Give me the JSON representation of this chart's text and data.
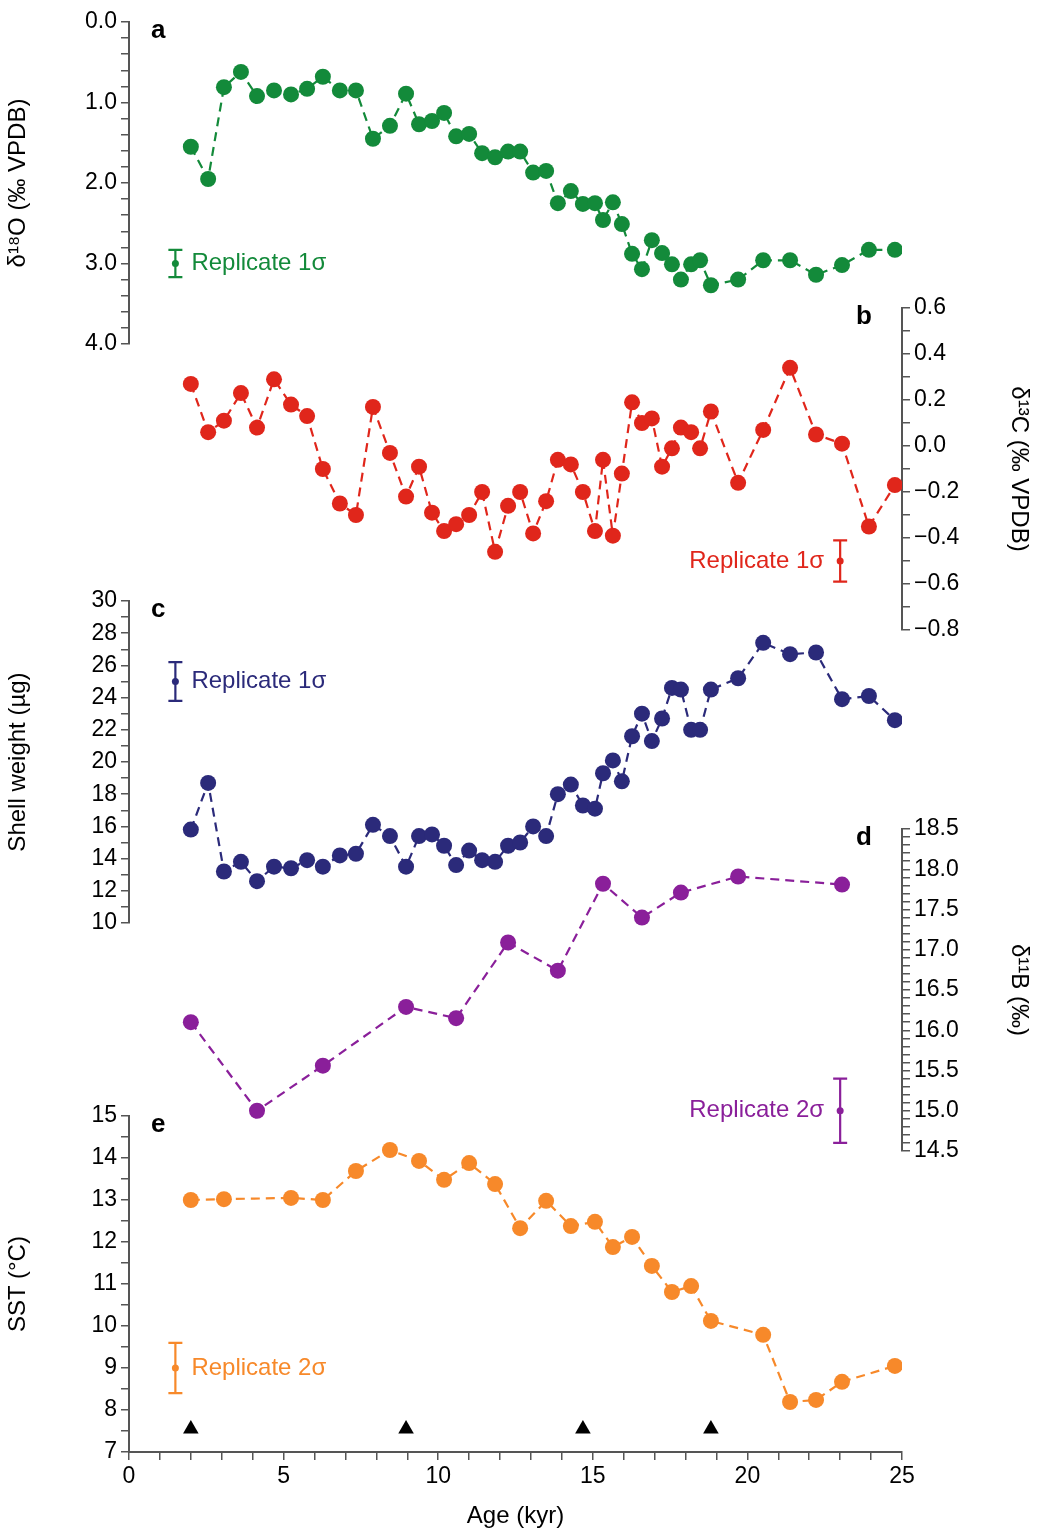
{
  "chart_data": [
    {
      "type": "line",
      "title": "a",
      "ylabel": "δ¹⁸O (‰ VPDB)",
      "xlim": [
        0,
        25
      ],
      "ylim": [
        4.0,
        0.0
      ],
      "yticks": [
        {
          "value": 0,
          "label": "0.0"
        },
        {
          "value": 0.2,
          "label": null
        },
        {
          "value": 0.4,
          "label": null
        },
        {
          "value": 0.6,
          "label": null
        },
        {
          "value": 0.8,
          "label": null
        },
        {
          "value": 1,
          "label": "1.0"
        },
        {
          "value": 1.2,
          "label": null
        },
        {
          "value": 1.4,
          "label": null
        },
        {
          "value": 1.6,
          "label": null
        },
        {
          "value": 1.8,
          "label": null
        },
        {
          "value": 2,
          "label": "2.0"
        },
        {
          "value": 2.2,
          "label": null
        },
        {
          "value": 2.4,
          "label": null
        },
        {
          "value": 2.6,
          "label": null
        },
        {
          "value": 2.8,
          "label": null
        },
        {
          "value": 3,
          "label": "3.0"
        },
        {
          "value": 3.2,
          "label": null
        },
        {
          "value": 3.4,
          "label": null
        },
        {
          "value": 3.6,
          "label": null
        },
        {
          "value": 3.8,
          "label": null
        },
        {
          "value": 4,
          "label": "4.0"
        }
      ],
      "tick_labels": "y",
      "grid": false,
      "legend": false,
      "marker": "circle",
      "line_style": "dashed",
      "series": [
        {
          "color": "#138a3a",
          "x": [
            2.0,
            2.56,
            3.07,
            3.62,
            4.14,
            4.69,
            5.24,
            5.76,
            6.27,
            6.82,
            7.34,
            7.89,
            8.44,
            8.96,
            9.38,
            9.8,
            10.19,
            10.58,
            11.0,
            11.42,
            11.84,
            12.26,
            12.65,
            13.07,
            13.49,
            13.87,
            14.29,
            14.68,
            15.07,
            15.33,
            15.65,
            15.94,
            16.27,
            16.59,
            16.91,
            17.24,
            17.56,
            17.85,
            18.18,
            18.47,
            18.82,
            19.7,
            20.51,
            21.38,
            22.22,
            23.06,
            23.93,
            24.77
          ],
          "values": [
            1.55,
            1.95,
            0.81,
            0.62,
            0.92,
            0.85,
            0.9,
            0.83,
            0.68,
            0.85,
            0.85,
            1.45,
            1.29,
            0.89,
            1.27,
            1.23,
            1.13,
            1.42,
            1.39,
            1.63,
            1.68,
            1.61,
            1.61,
            1.87,
            1.85,
            2.25,
            2.1,
            2.26,
            2.25,
            2.46,
            2.24,
            2.51,
            2.88,
            3.07,
            2.71,
            2.87,
            3.01,
            3.2,
            3.01,
            2.96,
            3.27,
            3.2,
            2.96,
            2.96,
            3.14,
            3.02,
            2.83,
            2.83
          ]
        },
        {
          "name": "Replicate 1σ",
          "type": "scatter",
          "color": "#138a3a",
          "x": [
            1.5
          ],
          "values": [
            3.0
          ],
          "errors": [
            0.17
          ]
        }
      ]
    },
    {
      "type": "line",
      "title": "b",
      "y2label": "δ¹³C (‰ VPDB)",
      "xlim": [
        0,
        25
      ],
      "y2lim": [
        -0.8,
        0.6
      ],
      "y2ticks": [
        {
          "value": -0.8,
          "label": "−0.8"
        },
        {
          "value": -0.7,
          "label": null
        },
        {
          "value": -0.6,
          "label": "−0.6"
        },
        {
          "value": -0.5,
          "label": null
        },
        {
          "value": -0.4,
          "label": "−0.4"
        },
        {
          "value": -0.3,
          "label": null
        },
        {
          "value": -0.2,
          "label": "−0.2"
        },
        {
          "value": -0.1,
          "label": null
        },
        {
          "value": 0,
          "label": "0.0"
        },
        {
          "value": 0.1,
          "label": null
        },
        0.2,
        {
          "value": 0.3,
          "label": null
        },
        0.4,
        {
          "value": 0.5,
          "label": null
        },
        0.6
      ],
      "tick_labels": "y2",
      "grid": false,
      "legend": false,
      "marker": "circle",
      "line_style": "dashed",
      "series": [
        {
          "color": "#e0261b",
          "axis": "y2",
          "x": [
            2.0,
            2.56,
            3.07,
            3.62,
            4.14,
            4.69,
            5.24,
            5.76,
            6.27,
            6.82,
            7.34,
            7.89,
            8.44,
            8.96,
            9.38,
            9.8,
            10.19,
            10.58,
            11.0,
            11.42,
            11.84,
            12.26,
            12.65,
            13.07,
            13.49,
            13.87,
            14.29,
            14.68,
            15.07,
            15.33,
            15.65,
            15.94,
            16.27,
            16.59,
            16.91,
            17.24,
            17.56,
            17.85,
            18.18,
            18.47,
            18.82,
            19.7,
            20.51,
            21.38,
            22.22,
            23.06,
            23.93,
            24.77
          ],
          "values": [
            0.27,
            0.06,
            0.11,
            0.23,
            0.08,
            0.29,
            0.18,
            0.13,
            -0.1,
            -0.25,
            -0.3,
            0.17,
            -0.03,
            -0.22,
            -0.09,
            -0.29,
            -0.37,
            -0.34,
            -0.3,
            -0.2,
            -0.46,
            -0.26,
            -0.2,
            -0.38,
            -0.24,
            -0.06,
            -0.08,
            -0.2,
            -0.37,
            -0.06,
            -0.39,
            -0.12,
            0.19,
            0.1,
            0.12,
            -0.09,
            -0.01,
            0.08,
            0.06,
            -0.01,
            0.15,
            -0.16,
            0.07,
            0.34,
            0.05,
            0.01,
            -0.35,
            -0.17
          ]
        },
        {
          "name": "Replicate 1σ",
          "type": "scatter",
          "color": "#e0261b",
          "axis": "y2",
          "x": [
            23.0
          ],
          "values": [
            -0.5
          ],
          "errors": [
            0.09
          ]
        }
      ]
    },
    {
      "type": "line",
      "title": "c",
      "ylabel": "Shell weight (µg)",
      "xlim": [
        0,
        25
      ],
      "ylim": [
        10,
        30
      ],
      "yticks": [
        10,
        {
          "value": 11,
          "label": null
        },
        12,
        {
          "value": 13,
          "label": null
        },
        14,
        {
          "value": 15,
          "label": null
        },
        16,
        {
          "value": 17,
          "label": null
        },
        18,
        {
          "value": 19,
          "label": null
        },
        20,
        {
          "value": 21,
          "label": null
        },
        22,
        {
          "value": 23,
          "label": null
        },
        24,
        {
          "value": 25,
          "label": null
        },
        26,
        {
          "value": 27,
          "label": null
        },
        28,
        {
          "value": 29,
          "label": null
        },
        30
      ],
      "tick_labels": "y",
      "grid": false,
      "legend": false,
      "marker": "circle",
      "line_style": "dashed",
      "series": [
        {
          "color": "#2b2a7a",
          "x": [
            2.0,
            2.56,
            3.07,
            3.62,
            4.14,
            4.69,
            5.24,
            5.76,
            6.27,
            6.82,
            7.34,
            7.89,
            8.44,
            8.96,
            9.38,
            9.8,
            10.19,
            10.58,
            11.0,
            11.42,
            11.84,
            12.26,
            12.65,
            13.07,
            13.49,
            13.87,
            14.29,
            14.68,
            15.07,
            15.33,
            15.65,
            15.94,
            16.27,
            16.59,
            16.91,
            17.24,
            17.56,
            17.85,
            18.18,
            18.47,
            18.82,
            19.7,
            20.51,
            21.38,
            22.22,
            23.06,
            23.93,
            24.77
          ],
          "values": [
            15.8,
            18.7,
            13.2,
            13.8,
            12.6,
            13.5,
            13.4,
            13.9,
            13.5,
            14.2,
            14.3,
            16.1,
            15.4,
            13.5,
            15.4,
            15.5,
            14.8,
            13.6,
            14.5,
            13.9,
            13.8,
            14.8,
            15.0,
            16.0,
            15.4,
            18.0,
            18.6,
            17.3,
            17.1,
            19.3,
            20.1,
            18.8,
            21.6,
            23.0,
            21.3,
            22.7,
            24.6,
            24.5,
            22.0,
            22.0,
            24.5,
            25.2,
            27.4,
            26.7,
            26.8,
            23.9,
            24.1,
            22.6
          ]
        },
        {
          "name": "Replicate 1σ",
          "type": "scatter",
          "color": "#2b2a7a",
          "x": [
            1.5
          ],
          "values": [
            25.0
          ],
          "errors": [
            1.2
          ]
        }
      ]
    },
    {
      "type": "line",
      "title": "d",
      "y2label": "δ¹¹B (‰)",
      "xlim": [
        0,
        25
      ],
      "y2lim": [
        14.5,
        18.5
      ],
      "y2ticks": [
        14.5,
        {
          "value": 14.6,
          "label": null
        },
        {
          "value": 14.7,
          "label": null
        },
        {
          "value": 14.8,
          "label": null
        },
        {
          "value": 14.9,
          "label": null
        },
        {
          "value": 15,
          "label": "15.0"
        },
        {
          "value": 15.1,
          "label": null
        },
        {
          "value": 15.2,
          "label": null
        },
        {
          "value": 15.3,
          "label": null
        },
        {
          "value": 15.4,
          "label": null
        },
        15.5,
        {
          "value": 15.6,
          "label": null
        },
        {
          "value": 15.7,
          "label": null
        },
        {
          "value": 15.8,
          "label": null
        },
        {
          "value": 15.9,
          "label": null
        },
        {
          "value": 16,
          "label": "16.0"
        },
        {
          "value": 16.1,
          "label": null
        },
        {
          "value": 16.2,
          "label": null
        },
        {
          "value": 16.3,
          "label": null
        },
        {
          "value": 16.4,
          "label": null
        },
        16.5,
        {
          "value": 16.6,
          "label": null
        },
        {
          "value": 16.7,
          "label": null
        },
        {
          "value": 16.8,
          "label": null
        },
        {
          "value": 16.9,
          "label": null
        },
        {
          "value": 17,
          "label": "17.0"
        },
        {
          "value": 17.1,
          "label": null
        },
        {
          "value": 17.2,
          "label": null
        },
        {
          "value": 17.3,
          "label": null
        },
        {
          "value": 17.4,
          "label": null
        },
        17.5,
        {
          "value": 17.6,
          "label": null
        },
        {
          "value": 17.7,
          "label": null
        },
        {
          "value": 17.8,
          "label": null
        },
        {
          "value": 17.9,
          "label": null
        },
        {
          "value": 18,
          "label": "18.0"
        },
        {
          "value": 18.1,
          "label": null
        },
        {
          "value": 18.2,
          "label": null
        },
        {
          "value": 18.3,
          "label": null
        },
        {
          "value": 18.4,
          "label": null
        },
        18.5
      ],
      "tick_labels": "y2",
      "grid": false,
      "legend": false,
      "marker": "circle",
      "line_style": "dashed",
      "series": [
        {
          "color": "#8a1f9a",
          "axis": "y2",
          "x": [
            2.0,
            4.14,
            6.27,
            8.96,
            10.58,
            12.26,
            13.87,
            15.33,
            16.59,
            17.85,
            19.7,
            23.06
          ],
          "values": [
            16.1,
            15.0,
            15.56,
            16.29,
            16.15,
            17.09,
            16.74,
            17.82,
            17.4,
            17.71,
            17.91,
            17.81
          ]
        },
        {
          "name": "Replicate 2σ",
          "type": "scatter",
          "color": "#8a1f9a",
          "axis": "y2",
          "x": [
            23.0
          ],
          "values": [
            15.0
          ],
          "errors": [
            0.4
          ]
        }
      ]
    },
    {
      "type": "line",
      "title": "e",
      "xlabel": "Age (kyr)",
      "ylabel": "SST (°C)",
      "xlim": [
        0,
        25
      ],
      "xticks": [
        0,
        {
          "value": 1,
          "label": null
        },
        {
          "value": 2,
          "label": null
        },
        {
          "value": 3,
          "label": null
        },
        {
          "value": 4,
          "label": null
        },
        5,
        {
          "value": 6,
          "label": null
        },
        {
          "value": 7,
          "label": null
        },
        {
          "value": 8,
          "label": null
        },
        {
          "value": 9,
          "label": null
        },
        10,
        {
          "value": 11,
          "label": null
        },
        {
          "value": 12,
          "label": null
        },
        {
          "value": 13,
          "label": null
        },
        {
          "value": 14,
          "label": null
        },
        15,
        {
          "value": 16,
          "label": null
        },
        {
          "value": 17,
          "label": null
        },
        {
          "value": 18,
          "label": null
        },
        {
          "value": 19,
          "label": null
        },
        20,
        {
          "value": 21,
          "label": null
        },
        {
          "value": 22,
          "label": null
        },
        {
          "value": 23,
          "label": null
        },
        {
          "value": 24,
          "label": null
        },
        25
      ],
      "ylim": [
        7,
        15
      ],
      "yticks": [
        7,
        {
          "value": 7.5,
          "label": null
        },
        8,
        {
          "value": 8.5,
          "label": null
        },
        9,
        {
          "value": 9.5,
          "label": null
        },
        10,
        {
          "value": 10.5,
          "label": null
        },
        11,
        {
          "value": 11.5,
          "label": null
        },
        12,
        {
          "value": 12.5,
          "label": null
        },
        13,
        {
          "value": 13.5,
          "label": null
        },
        14,
        {
          "value": 14.5,
          "label": null
        },
        15
      ],
      "grid": false,
      "legend": false,
      "marker": "circle",
      "line_style": "dashed",
      "series": [
        {
          "color": "#f7892a",
          "x": [
            2.0,
            3.07,
            5.24,
            6.27,
            7.34,
            8.44,
            9.38,
            10.19,
            11.0,
            11.84,
            12.65,
            13.49,
            14.29,
            15.07,
            15.65,
            16.27,
            16.91,
            17.56,
            18.18,
            18.82,
            20.51,
            21.38,
            22.22,
            23.06,
            24.77
          ],
          "values": [
            13.0,
            13.02,
            13.05,
            13.0,
            13.69,
            14.19,
            13.93,
            13.48,
            13.88,
            13.38,
            12.33,
            12.98,
            12.38,
            12.48,
            11.88,
            12.12,
            11.43,
            10.81,
            10.95,
            10.12,
            9.79,
            8.19,
            8.24,
            8.67,
            9.05
          ]
        },
        {
          "name": "Replicate 2σ",
          "type": "scatter",
          "color": "#f7892a",
          "x": [
            1.5
          ],
          "values": [
            9.0
          ],
          "errors": [
            0.6
          ]
        },
        {
          "type": "scatter",
          "marker": "triangle",
          "color": "#000000",
          "x": [
            2.0,
            8.96,
            14.68,
            18.82
          ],
          "values": [
            7.55,
            7.55,
            7.55,
            7.55
          ]
        }
      ]
    }
  ]
}
